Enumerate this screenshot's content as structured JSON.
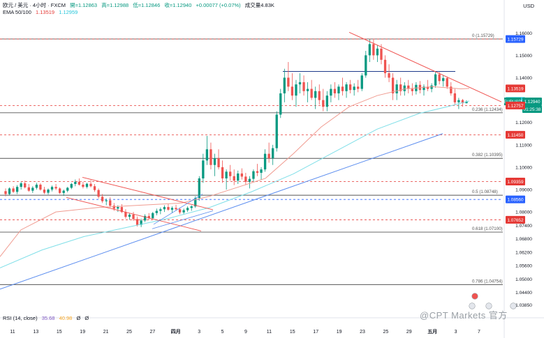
{
  "header": {
    "symbol": "欧元 / 美元 · 4小时 · FXCM",
    "open_label": "開=1.12863",
    "high_label": "高=1.12988",
    "low_label": "低=1.12846",
    "close_label": "收=1.12940",
    "change_label": "+0.00077 (+0.07%)",
    "volume_label": "成交量4.83K",
    "ema_title": "EMA 50/100",
    "ema50_value": "1.13519",
    "ema100_value": "1.12959"
  },
  "currency_label": "USD",
  "rsi": {
    "title": "RSI (14, close)",
    "value": "35.68",
    "ma_value": "40.98",
    "extra1": "Ø",
    "extra2": "Ø"
  },
  "watermark": "@CPT Markets 官方",
  "colors": {
    "up": "#089981",
    "down": "#ef5350",
    "ema50": "#f09b90",
    "ema100": "#7fdfe8",
    "trend_blue": "#5b8def",
    "trend_red": "#ef5350",
    "hline": "#555555",
    "dash_red": "#e53935"
  },
  "chart_data": {
    "type": "candlestick",
    "title": "EURUSD 4h",
    "xlabel": "",
    "ylabel": "",
    "ylim": [
      1.0352,
      1.166
    ],
    "y_ticks": [
      "1.16000",
      "1.15000",
      "1.14000",
      "1.13000",
      "1.12000",
      "1.11000",
      "1.10000",
      "1.09000",
      "1.08000",
      "1.07400",
      "1.06800",
      "1.06200",
      "1.05600",
      "1.05000",
      "1.04400",
      "1.03850"
    ],
    "x_ticks": [
      "11",
      "13",
      "15",
      "19",
      "21",
      "25",
      "27",
      "四月",
      "3",
      "5",
      "9",
      "11",
      "15",
      "17",
      "19",
      "23",
      "25",
      "29",
      "五月",
      "3",
      "7"
    ],
    "price_tags": [
      {
        "label": "1.15729",
        "value": 1.15729,
        "color": "#2962ff"
      },
      {
        "label": "1.13519",
        "value": 1.13519,
        "color": "#e53935"
      },
      {
        "label": "1.12959",
        "value": 1.12959,
        "color": "#26c6da"
      },
      {
        "label": "EURUSD",
        "value": 1.1294,
        "color": "#089981"
      },
      {
        "label": "1.12940",
        "value": 1.1294,
        "color": "#089981"
      },
      {
        "label": "01:25:38",
        "value": 1.126,
        "color": "#089981"
      },
      {
        "label": "1.12757",
        "value": 1.12757,
        "color": "#e53935"
      },
      {
        "label": "1.11450",
        "value": 1.1145,
        "color": "#e53935"
      },
      {
        "label": "1.09359",
        "value": 1.09359,
        "color": "#e53935"
      },
      {
        "label": "1.08560",
        "value": 1.0856,
        "color": "#2962ff"
      },
      {
        "label": "1.07652",
        "value": 1.07652,
        "color": "#e53935"
      }
    ],
    "fib_levels": [
      {
        "label": "0 (1.15729)",
        "value": 1.15729
      },
      {
        "label": "0.236 (1.12434)",
        "value": 1.12434
      },
      {
        "label": "0.382 (1.10395)",
        "value": 1.10395
      },
      {
        "label": "0.5 (1.08748)",
        "value": 1.08748
      },
      {
        "label": "0.618 (1.07100)",
        "value": 1.071
      },
      {
        "label": "0.786 (1.04754)",
        "value": 1.04754
      }
    ],
    "dashed_levels": [
      1.15729,
      1.12757,
      1.1145,
      1.09359,
      1.0856,
      1.07652
    ],
    "series": [
      {
        "name": "EMA 50",
        "values_note": "",
        "points": [
          [
            0,
            1.06
          ],
          [
            30,
            1.072
          ],
          [
            80,
            1.08
          ],
          [
            140,
            1.082
          ],
          [
            200,
            1.083
          ],
          [
            260,
            1.084
          ],
          [
            300,
            1.087
          ],
          [
            340,
            1.091
          ],
          [
            380,
            1.095
          ],
          [
            420,
            1.106
          ],
          [
            460,
            1.118
          ],
          [
            500,
            1.127
          ],
          [
            540,
            1.132
          ],
          [
            580,
            1.135
          ],
          [
            620,
            1.136
          ],
          [
            660,
            1.135
          ],
          [
            672,
            1.1352
          ]
        ]
      },
      {
        "name": "EMA 100",
        "points": [
          [
            0,
            1.055
          ],
          [
            60,
            1.063
          ],
          [
            120,
            1.069
          ],
          [
            180,
            1.073
          ],
          [
            240,
            1.077
          ],
          [
            300,
            1.082
          ],
          [
            360,
            1.089
          ],
          [
            420,
            1.097
          ],
          [
            480,
            1.107
          ],
          [
            540,
            1.117
          ],
          [
            600,
            1.124
          ],
          [
            640,
            1.127
          ],
          [
            672,
            1.1296
          ]
        ]
      }
    ],
    "candles": [
      [
        1.0893,
        1.0905,
        1.087,
        1.088
      ],
      [
        1.088,
        1.091,
        1.0875,
        1.0905
      ],
      [
        1.0905,
        1.0915,
        1.0885,
        1.089
      ],
      [
        1.089,
        1.092,
        1.088,
        1.0912
      ],
      [
        1.0912,
        1.0935,
        1.09,
        1.0928
      ],
      [
        1.0928,
        1.094,
        1.0905,
        1.091
      ],
      [
        1.091,
        1.0925,
        1.089,
        1.0895
      ],
      [
        1.0895,
        1.0915,
        1.0885,
        1.0908
      ],
      [
        1.0908,
        1.093,
        1.09,
        1.0922
      ],
      [
        1.0922,
        1.0928,
        1.0895,
        1.09
      ],
      [
        1.09,
        1.0912,
        1.088,
        1.0886
      ],
      [
        1.0886,
        1.0905,
        1.0878,
        1.09
      ],
      [
        1.09,
        1.0918,
        1.0892,
        1.0912
      ],
      [
        1.0912,
        1.0925,
        1.0898,
        1.0905
      ],
      [
        1.0905,
        1.091,
        1.088,
        1.0885
      ],
      [
        1.0885,
        1.09,
        1.0872,
        1.0895
      ],
      [
        1.0895,
        1.0912,
        1.0888,
        1.0908
      ],
      [
        1.0908,
        1.093,
        1.0902,
        1.0925
      ],
      [
        1.0925,
        1.0945,
        1.0915,
        1.0935
      ],
      [
        1.0935,
        1.095,
        1.0918,
        1.0922
      ],
      [
        1.0922,
        1.0935,
        1.0905,
        1.0912
      ],
      [
        1.0912,
        1.093,
        1.0905,
        1.0926
      ],
      [
        1.0926,
        1.0942,
        1.091,
        1.0915
      ],
      [
        1.0915,
        1.0925,
        1.089,
        1.0898
      ],
      [
        1.0898,
        1.0905,
        1.086,
        1.0868
      ],
      [
        1.0868,
        1.088,
        1.084,
        1.0848
      ],
      [
        1.0848,
        1.086,
        1.083,
        1.0852
      ],
      [
        1.0852,
        1.0865,
        1.082,
        1.0828
      ],
      [
        1.0828,
        1.084,
        1.0805,
        1.0815
      ],
      [
        1.0815,
        1.083,
        1.08,
        1.0822
      ],
      [
        1.0822,
        1.0835,
        1.0795,
        1.08
      ],
      [
        1.08,
        1.0812,
        1.077,
        1.0778
      ],
      [
        1.0778,
        1.0795,
        1.0765,
        1.0788
      ],
      [
        1.0788,
        1.08,
        1.076,
        1.0768
      ],
      [
        1.0768,
        1.078,
        1.0735,
        1.0742
      ],
      [
        1.0742,
        1.077,
        1.0732,
        1.0762
      ],
      [
        1.0762,
        1.079,
        1.0755,
        1.0782
      ],
      [
        1.0782,
        1.0795,
        1.0765,
        1.0772
      ],
      [
        1.0772,
        1.08,
        1.0768,
        1.0795
      ],
      [
        1.0795,
        1.0815,
        1.0785,
        1.0805
      ],
      [
        1.0805,
        1.082,
        1.079,
        1.0812
      ],
      [
        1.0812,
        1.083,
        1.08,
        1.0822
      ],
      [
        1.0822,
        1.0835,
        1.0805,
        1.081
      ],
      [
        1.081,
        1.0825,
        1.0795,
        1.0818
      ],
      [
        1.0818,
        1.0832,
        1.0805,
        1.0812
      ],
      [
        1.0812,
        1.082,
        1.079,
        1.0798
      ],
      [
        1.0798,
        1.0815,
        1.0788,
        1.0808
      ],
      [
        1.0808,
        1.0825,
        1.08,
        1.0818
      ],
      [
        1.0818,
        1.083,
        1.0805,
        1.0825
      ],
      [
        1.0825,
        1.087,
        1.0818,
        1.0862
      ],
      [
        1.0862,
        1.096,
        1.085,
        1.095
      ],
      [
        1.095,
        1.106,
        1.093,
        1.103
      ],
      [
        1.103,
        1.114,
        1.101,
        1.108
      ],
      [
        1.108,
        1.111,
        1.099,
        1.101
      ],
      [
        1.101,
        1.106,
        1.096,
        1.104
      ],
      [
        1.104,
        1.108,
        1.099,
        1.1
      ],
      [
        1.1,
        1.103,
        1.093,
        1.095
      ],
      [
        1.095,
        1.099,
        1.09,
        1.098
      ],
      [
        1.098,
        1.101,
        1.094,
        1.096
      ],
      [
        1.096,
        1.099,
        1.092,
        1.094
      ],
      [
        1.094,
        1.0985,
        1.0925,
        1.0972
      ],
      [
        1.0972,
        1.0995,
        1.0945,
        1.0958
      ],
      [
        1.0958,
        1.0975,
        1.092,
        1.0935
      ],
      [
        1.0935,
        1.096,
        1.0905,
        1.0948
      ],
      [
        1.0948,
        1.099,
        1.0935,
        1.0982
      ],
      [
        1.0982,
        1.1015,
        1.096,
        1.0975
      ],
      [
        1.0975,
        1.1,
        1.0945,
        1.099
      ],
      [
        1.099,
        1.108,
        1.098,
        1.106
      ],
      [
        1.106,
        1.111,
        1.102,
        1.104
      ],
      [
        1.104,
        1.11,
        1.101,
        1.1085
      ],
      [
        1.1085,
        1.125,
        1.107,
        1.1235
      ],
      [
        1.1235,
        1.135,
        1.122,
        1.133
      ],
      [
        1.133,
        1.144,
        1.129,
        1.14
      ],
      [
        1.14,
        1.147,
        1.134,
        1.136
      ],
      [
        1.136,
        1.142,
        1.13,
        1.132
      ],
      [
        1.132,
        1.139,
        1.127,
        1.137
      ],
      [
        1.137,
        1.142,
        1.133,
        1.138
      ],
      [
        1.138,
        1.141,
        1.132,
        1.134
      ],
      [
        1.134,
        1.138,
        1.129,
        1.135
      ],
      [
        1.135,
        1.139,
        1.13,
        1.131
      ],
      [
        1.131,
        1.136,
        1.126,
        1.134
      ],
      [
        1.134,
        1.137,
        1.128,
        1.13
      ],
      [
        1.13,
        1.135,
        1.125,
        1.127
      ],
      [
        1.127,
        1.134,
        1.125,
        1.132
      ],
      [
        1.132,
        1.137,
        1.129,
        1.135
      ],
      [
        1.135,
        1.138,
        1.131,
        1.133
      ],
      [
        1.133,
        1.137,
        1.13,
        1.136
      ],
      [
        1.136,
        1.14,
        1.132,
        1.134
      ],
      [
        1.134,
        1.138,
        1.131,
        1.137
      ],
      [
        1.137,
        1.139,
        1.133,
        1.1345
      ],
      [
        1.1345,
        1.1375,
        1.132,
        1.136
      ],
      [
        1.136,
        1.139,
        1.1335,
        1.135
      ],
      [
        1.135,
        1.142,
        1.134,
        1.141
      ],
      [
        1.141,
        1.152,
        1.14,
        1.15
      ],
      [
        1.15,
        1.1573,
        1.147,
        1.155
      ],
      [
        1.155,
        1.157,
        1.148,
        1.15
      ],
      [
        1.15,
        1.1545,
        1.147,
        1.153
      ],
      [
        1.153,
        1.155,
        1.146,
        1.148
      ],
      [
        1.148,
        1.15,
        1.14,
        1.142
      ],
      [
        1.142,
        1.146,
        1.138,
        1.14
      ],
      [
        1.14,
        1.142,
        1.13,
        1.133
      ],
      [
        1.133,
        1.139,
        1.13,
        1.137
      ],
      [
        1.137,
        1.14,
        1.132,
        1.134
      ],
      [
        1.134,
        1.138,
        1.132,
        1.1365
      ],
      [
        1.1365,
        1.139,
        1.133,
        1.135
      ],
      [
        1.135,
        1.1375,
        1.132,
        1.134
      ],
      [
        1.134,
        1.138,
        1.1325,
        1.1368
      ],
      [
        1.1368,
        1.1385,
        1.133,
        1.1345
      ],
      [
        1.1345,
        1.137,
        1.132,
        1.136
      ],
      [
        1.136,
        1.139,
        1.134,
        1.135
      ],
      [
        1.135,
        1.1375,
        1.1335,
        1.1365
      ],
      [
        1.1365,
        1.1425,
        1.1355,
        1.1415
      ],
      [
        1.1415,
        1.1425,
        1.137,
        1.1385
      ],
      [
        1.1385,
        1.141,
        1.136,
        1.1398
      ],
      [
        1.1398,
        1.1405,
        1.135,
        1.136
      ],
      [
        1.136,
        1.138,
        1.132,
        1.133
      ],
      [
        1.133,
        1.135,
        1.128,
        1.129
      ],
      [
        1.129,
        1.131,
        1.126,
        1.13
      ],
      [
        1.13,
        1.1305,
        1.127,
        1.1286
      ],
      [
        1.1286,
        1.1299,
        1.1285,
        1.1294
      ]
    ]
  }
}
